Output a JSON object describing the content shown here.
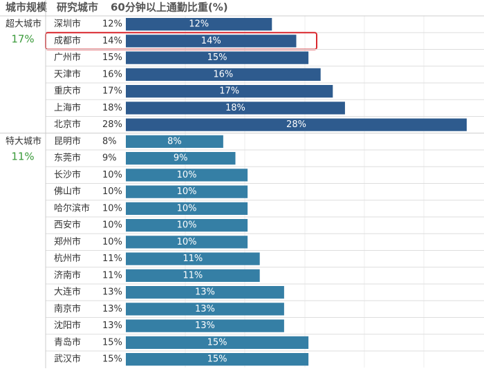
{
  "chart_data": {
    "type": "bar",
    "headers": [
      "城市规模",
      "研究城市",
      "60分钟以上通勤比重(%)"
    ],
    "groups": [
      {
        "name": "超大城市",
        "value": 17,
        "value_label": "17%",
        "color": "#2e5b8e",
        "categories": [
          "深圳市",
          "成都市",
          "广州市",
          "天津市",
          "重庆市",
          "上海市",
          "北京市"
        ],
        "values": [
          12,
          14,
          15,
          16,
          17,
          18,
          28
        ],
        "value_labels": [
          "12%",
          "14%",
          "15%",
          "16%",
          "17%",
          "18%",
          "28%"
        ]
      },
      {
        "name": "特大城市",
        "value": 11,
        "value_label": "11%",
        "color": "#357fa5",
        "categories": [
          "昆明市",
          "东莞市",
          "长沙市",
          "佛山市",
          "哈尔滨市",
          "西安市",
          "郑州市",
          "杭州市",
          "济南市",
          "大连市",
          "南京市",
          "沈阳市",
          "青岛市",
          "武汉市"
        ],
        "values": [
          8,
          9,
          10,
          10,
          10,
          10,
          10,
          11,
          11,
          13,
          13,
          13,
          15,
          15
        ],
        "value_labels": [
          "8%",
          "9%",
          "10%",
          "10%",
          "10%",
          "10%",
          "10%",
          "11%",
          "11%",
          "13%",
          "13%",
          "13%",
          "15%",
          "15%"
        ]
      }
    ],
    "group_value_color": "#3a9a3a",
    "highlight": {
      "group": 0,
      "index": 1,
      "color": "#d9262c"
    }
  }
}
